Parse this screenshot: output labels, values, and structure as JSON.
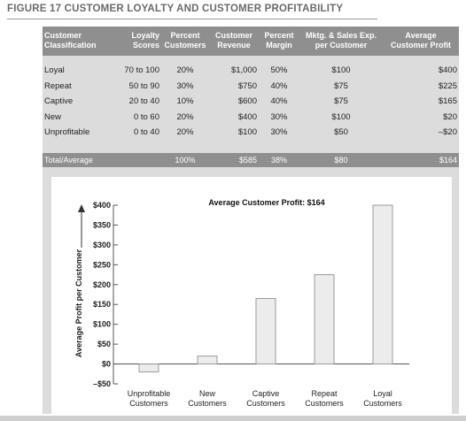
{
  "figure_title": "FIGURE 17 CUSTOMER LOYALTY AND CUSTOMER PROFITABILITY",
  "table": {
    "headers": [
      [
        "Customer",
        "Classification"
      ],
      [
        "Loyalty",
        "Scores"
      ],
      [
        "Percent",
        "Customers"
      ],
      [
        "Customer",
        "Revenue"
      ],
      [
        "Percent",
        "Margin"
      ],
      [
        "Mktg. & Sales Exp.",
        "per Customer"
      ],
      [
        "Average",
        "Customer Profit"
      ]
    ],
    "rows": [
      [
        "Loyal",
        "70 to 100",
        "20%",
        "$1,000",
        "50%",
        "$100",
        "$400"
      ],
      [
        "Repeat",
        "50 to 90",
        "30%",
        "$750",
        "40%",
        "$75",
        "$225"
      ],
      [
        "Captive",
        "20 to 40",
        "10%",
        "$600",
        "40%",
        "$75",
        "$165"
      ],
      [
        "New",
        "0 to 60",
        "20%",
        "$400",
        "30%",
        "$100",
        "$20"
      ],
      [
        "Unprofitable",
        "0 to 40",
        "20%",
        "$100",
        "30%",
        "$50",
        "–$20"
      ]
    ],
    "total": [
      "Total/Average",
      "",
      "100%",
      "$585",
      "38%",
      "$80",
      "$164"
    ]
  },
  "chart_data": {
    "type": "bar",
    "title": "Average Customer Profit: $164",
    "ylabel": "Average Profit per Customer",
    "xlabel": "",
    "categories": [
      [
        "Unprofitable",
        "Customers"
      ],
      [
        "New",
        "Customers"
      ],
      [
        "Captive",
        "Customers"
      ],
      [
        "Repeat",
        "Customers"
      ],
      [
        "Loyal",
        "Customers"
      ]
    ],
    "values": [
      -20,
      20,
      165,
      225,
      400
    ],
    "ylim": [
      -50,
      400
    ],
    "yticks": [
      -50,
      0,
      50,
      100,
      150,
      200,
      250,
      300,
      350,
      400
    ],
    "ytick_labels": [
      "–$50",
      "$0",
      "$50",
      "$100",
      "$150",
      "$200",
      "$250",
      "$300",
      "$350",
      "$400"
    ],
    "grid": false,
    "bar_fill": "#ececec",
    "bar_stroke": "#9a9a9a"
  }
}
